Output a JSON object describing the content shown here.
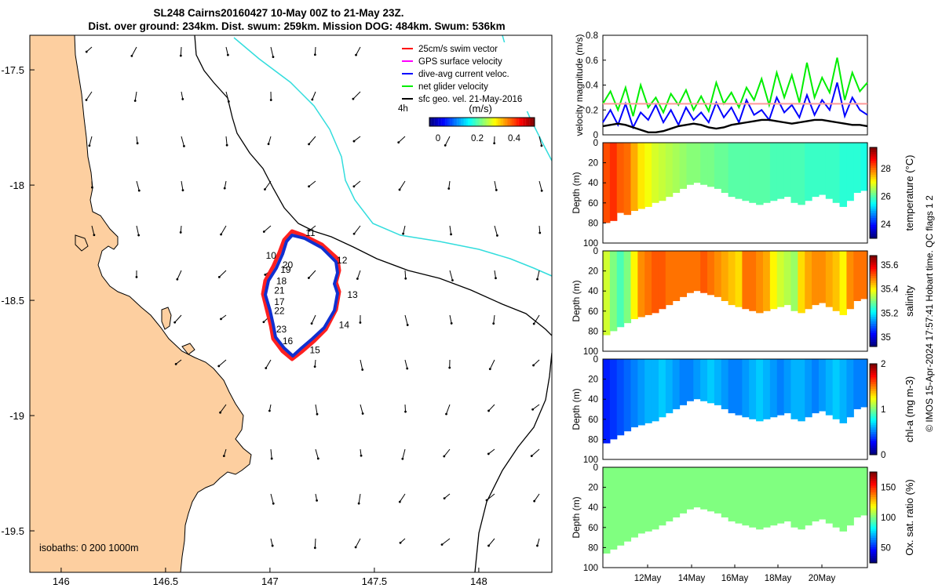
{
  "title": {
    "line1": "SL248 Cairns20160427 10-May 00Z to 21-May 23Z.",
    "line2": "Dist. over ground: 234km. Dist. swum: 259km. Mission DOG: 484km. Swum: 536km"
  },
  "map": {
    "x_ticks": [
      "146",
      "146.5",
      "147",
      "147.5",
      "148"
    ],
    "y_ticks": [
      "-17.5",
      "-18",
      "-18.5",
      "-19",
      "-19.5"
    ],
    "xlim": [
      145.85,
      148.35
    ],
    "ylim": [
      -19.68,
      -17.35
    ],
    "isobaths_label": "isobaths: 0   200  1000m",
    "time_step_label": "4h",
    "legend": [
      {
        "label": "25cm/s swim vector",
        "color": "#ff0000"
      },
      {
        "label": "GPS surface velocity",
        "color": "#ff00ff"
      },
      {
        "label": "dive-avg current veloc.",
        "color": "#0000ff"
      },
      {
        "label": "net glider velocity",
        "color": "#00ee00"
      },
      {
        "label": "sfc geo. vel. 21-May-2016",
        "color": "#000000"
      }
    ],
    "colorbar": {
      "label": "(m/s)",
      "ticks": [
        "0",
        "0.2",
        "0.4"
      ]
    },
    "day_labels": [
      {
        "text": "11",
        "lon": 147.17,
        "lat": -18.22
      },
      {
        "text": "12",
        "lon": 147.32,
        "lat": -18.34
      },
      {
        "text": "10",
        "lon": 146.98,
        "lat": -18.32
      },
      {
        "text": "20",
        "lon": 147.06,
        "lat": -18.36
      },
      {
        "text": "19",
        "lon": 147.05,
        "lat": -18.38
      },
      {
        "text": "18",
        "lon": 147.03,
        "lat": -18.43
      },
      {
        "text": "21",
        "lon": 147.02,
        "lat": -18.47
      },
      {
        "text": "17",
        "lon": 147.02,
        "lat": -18.52
      },
      {
        "text": "22",
        "lon": 147.02,
        "lat": -18.56
      },
      {
        "text": "13",
        "lon": 147.37,
        "lat": -18.49
      },
      {
        "text": "14",
        "lon": 147.33,
        "lat": -18.62
      },
      {
        "text": "23",
        "lon": 147.03,
        "lat": -18.64
      },
      {
        "text": "16",
        "lon": 147.06,
        "lat": -18.69
      },
      {
        "text": "15",
        "lon": 147.19,
        "lat": -18.73
      }
    ]
  },
  "chart_data": [
    {
      "type": "line",
      "ylabel": "velocity magnitude (m/s)",
      "ylim": [
        0,
        0.8
      ],
      "y_ticks": [
        "0",
        "0.2",
        "0.4",
        "0.6",
        "0.8"
      ],
      "series": [
        {
          "color": "#00ee00",
          "values": [
            0.25,
            0.35,
            0.2,
            0.38,
            0.15,
            0.4,
            0.22,
            0.3,
            0.18,
            0.33,
            0.24,
            0.36,
            0.2,
            0.31,
            0.19,
            0.42,
            0.25,
            0.34,
            0.22,
            0.38,
            0.28,
            0.45,
            0.24,
            0.5,
            0.3,
            0.48,
            0.26,
            0.58,
            0.3,
            0.46,
            0.34,
            0.62,
            0.28,
            0.5,
            0.35,
            0.42
          ]
        },
        {
          "color": "#0000ff",
          "values": [
            0.1,
            0.2,
            0.08,
            0.25,
            0.06,
            0.18,
            0.12,
            0.24,
            0.1,
            0.2,
            0.08,
            0.22,
            0.12,
            0.18,
            0.1,
            0.26,
            0.14,
            0.22,
            0.1,
            0.28,
            0.16,
            0.2,
            0.12,
            0.3,
            0.18,
            0.24,
            0.14,
            0.32,
            0.16,
            0.28,
            0.2,
            0.42,
            0.15,
            0.3,
            0.2,
            0.16
          ]
        },
        {
          "color": "#000000",
          "values": [
            0.07,
            0.08,
            0.09,
            0.08,
            0.06,
            0.04,
            0.02,
            0.02,
            0.03,
            0.05,
            0.07,
            0.08,
            0.09,
            0.08,
            0.06,
            0.05,
            0.06,
            0.08,
            0.09,
            0.1,
            0.11,
            0.12,
            0.12,
            0.11,
            0.1,
            0.09,
            0.1,
            0.11,
            0.12,
            0.12,
            0.11,
            0.1,
            0.09,
            0.08,
            0.08,
            0.07
          ]
        },
        {
          "color": "#ff9999",
          "values": [
            0.25,
            0.25
          ]
        }
      ]
    },
    {
      "type": "heatmap",
      "ylabel": "Depth (m)",
      "clabel": "temperature (°C)",
      "cticks": [
        "24",
        "26",
        "28"
      ],
      "clim": [
        23,
        29.5
      ],
      "ylim": [
        100,
        0
      ],
      "y_ticks": [
        "0",
        "20",
        "40",
        "60",
        "80",
        "100"
      ],
      "bottom_depth": [
        80,
        78,
        70,
        72,
        68,
        66,
        64,
        60,
        58,
        54,
        50,
        46,
        42,
        40,
        42,
        44,
        46,
        50,
        54,
        56,
        58,
        60,
        62,
        60,
        58,
        56,
        54,
        60,
        62,
        58,
        54,
        52,
        56,
        60,
        64,
        58,
        50,
        48
      ],
      "surface_values": [
        28.2,
        28.4,
        28.1,
        28.0,
        27.6,
        27.2,
        27.0,
        26.8,
        26.7,
        26.6,
        26.5,
        26.4,
        26.3,
        26.3,
        26.2,
        26.2,
        26.1,
        26.1,
        26.0,
        26.0,
        26.0,
        26.0,
        26.0,
        26.0,
        25.9,
        25.9,
        25.9,
        25.9,
        25.9,
        25.8,
        25.8,
        25.8,
        25.8,
        25.8,
        25.7,
        25.7,
        25.7,
        25.6
      ]
    },
    {
      "type": "heatmap",
      "ylabel": "Depth (m)",
      "clabel": "salinity",
      "cticks": [
        "35",
        "35.2",
        "35.4",
        "35.6"
      ],
      "clim": [
        34.92,
        35.68
      ],
      "ylim": [
        100,
        0
      ],
      "y_ticks": [
        "0",
        "20",
        "40",
        "60",
        "80",
        "100"
      ],
      "bottom_depth": [
        84,
        80,
        76,
        72,
        68,
        66,
        64,
        62,
        58,
        54,
        50,
        46,
        42,
        40,
        42,
        44,
        46,
        50,
        54,
        56,
        58,
        60,
        62,
        60,
        58,
        56,
        54,
        60,
        62,
        58,
        54,
        52,
        56,
        60,
        64,
        58,
        50,
        48
      ],
      "surface_values": [
        35.36,
        35.3,
        35.26,
        35.3,
        35.4,
        35.48,
        35.5,
        35.52,
        35.52,
        35.5,
        35.5,
        35.5,
        35.5,
        35.5,
        35.52,
        35.5,
        35.48,
        35.46,
        35.44,
        35.42,
        35.5,
        35.5,
        35.48,
        35.46,
        35.4,
        35.36,
        35.34,
        35.32,
        35.42,
        35.46,
        35.48,
        35.48,
        35.46,
        35.44,
        35.4,
        35.48,
        35.5,
        35.5
      ]
    },
    {
      "type": "heatmap",
      "ylabel": "Depth (m)",
      "clabel": "chl-a (mg m-3)",
      "cticks": [
        "0",
        "1",
        "2"
      ],
      "clim": [
        0,
        2
      ],
      "ylim": [
        100,
        0
      ],
      "y_ticks": [
        "0",
        "20",
        "40",
        "60",
        "80",
        "100"
      ],
      "bottom_depth": [
        84,
        80,
        76,
        72,
        68,
        66,
        64,
        62,
        58,
        54,
        50,
        46,
        42,
        40,
        42,
        44,
        46,
        50,
        54,
        56,
        58,
        60,
        62,
        60,
        58,
        56,
        54,
        60,
        62,
        58,
        54,
        52,
        56,
        60,
        64,
        58,
        50,
        48
      ],
      "surface_values": [
        0.3,
        0.35,
        0.4,
        0.45,
        0.5,
        0.55,
        0.6,
        0.6,
        0.65,
        0.6,
        0.55,
        0.5,
        0.5,
        0.55,
        0.6,
        0.65,
        0.6,
        0.55,
        0.5,
        0.5,
        0.55,
        0.6,
        0.65,
        0.6,
        0.55,
        0.5,
        0.55,
        0.6,
        0.6,
        0.55,
        0.5,
        0.55,
        0.6,
        0.65,
        0.6,
        0.55,
        0.5,
        0.5
      ]
    },
    {
      "type": "heatmap",
      "ylabel": "Depth (m)",
      "clabel": "Ox. sat. ratio (%)",
      "cticks": [
        "50",
        "100",
        "150"
      ],
      "clim": [
        25,
        175
      ],
      "ylim": [
        100,
        0
      ],
      "y_ticks": [
        "0",
        "20",
        "40",
        "60",
        "80",
        "100"
      ],
      "x_ticks": [
        "12May",
        "14May",
        "16May",
        "18May",
        "20May"
      ],
      "bottom_depth": [
        86,
        82,
        78,
        74,
        70,
        66,
        64,
        62,
        58,
        54,
        50,
        46,
        42,
        40,
        42,
        44,
        46,
        50,
        54,
        56,
        58,
        60,
        62,
        60,
        58,
        56,
        54,
        60,
        62,
        58,
        54,
        52,
        56,
        60,
        64,
        58,
        50,
        48
      ],
      "surface_values": [
        100,
        100,
        100,
        100,
        100,
        100,
        100,
        100,
        100,
        100,
        100,
        100,
        100,
        100,
        100,
        100,
        100,
        100,
        100,
        100,
        100,
        100,
        100,
        100,
        100,
        100,
        100,
        100,
        100,
        100,
        100,
        100,
        100,
        100,
        100,
        100,
        100,
        100
      ]
    }
  ],
  "footer": "© IMOS 15-Apr-2024 17:57:41 Hobart time. QC flags 1  2"
}
